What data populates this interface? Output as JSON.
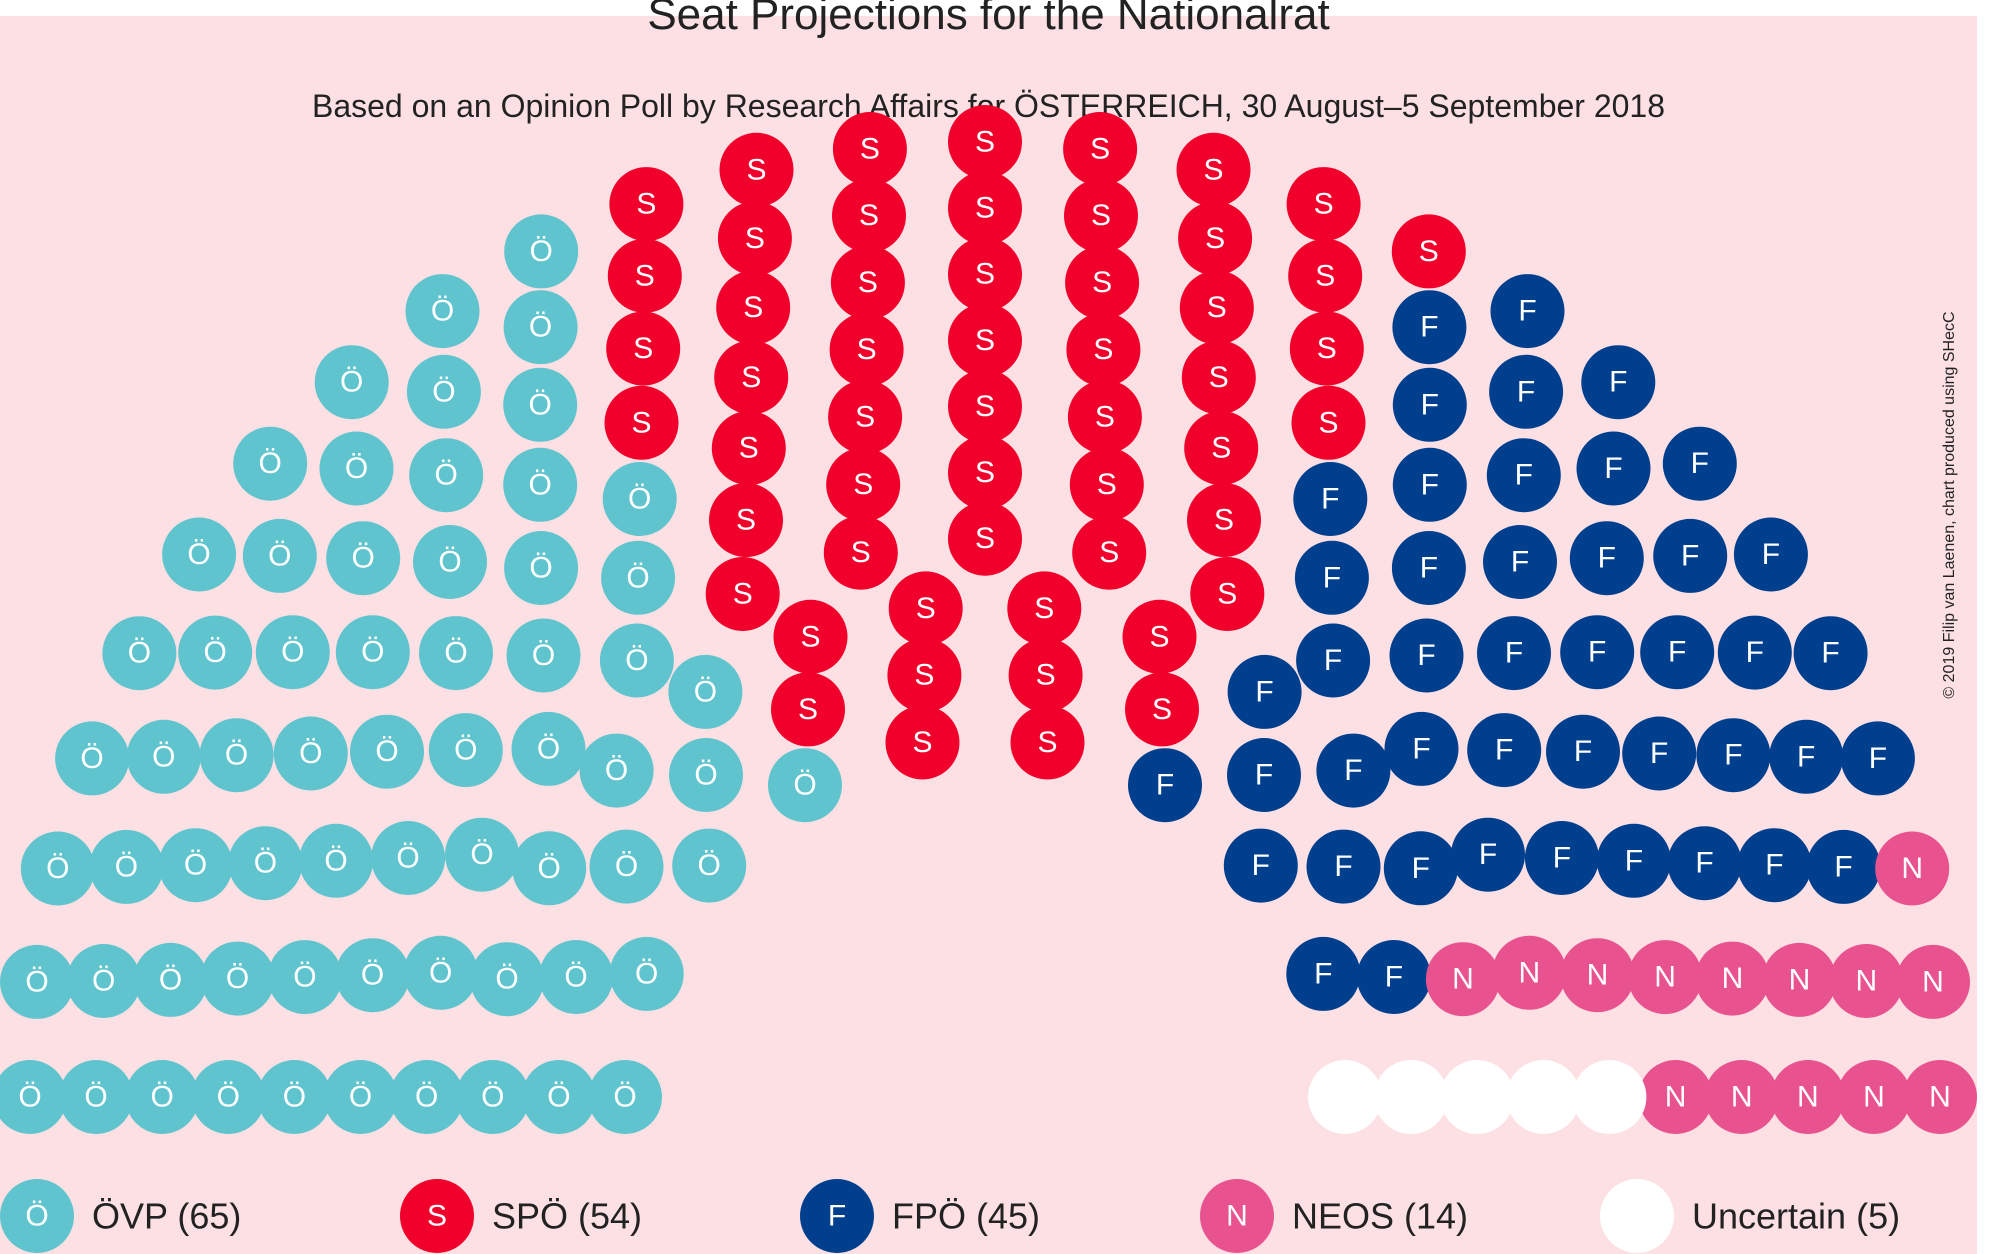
{
  "chart_data": {
    "type": "parliament",
    "title": "Seat Projections for the Nationalrat",
    "subtitle": "Based on an Opinion Poll by Research Affairs for ÖSTERREICH, 30 August–5 September 2018",
    "credit": "© 2019 Filip van Laenen, chart produced using SHecC",
    "total_seats": 183,
    "parties": [
      {
        "name": "ÖVP",
        "symbol": "Ö",
        "seats": 65,
        "color": "#60c4cf",
        "legend": "ÖVP (65)"
      },
      {
        "name": "SPÖ",
        "symbol": "S",
        "seats": 54,
        "color": "#f0002a",
        "legend": "SPÖ (54)"
      },
      {
        "name": "FPÖ",
        "symbol": "F",
        "seats": 45,
        "color": "#003f8e",
        "legend": "FPÖ (45)"
      },
      {
        "name": "NEOS",
        "symbol": "N",
        "seats": 14,
        "color": "#e8528f",
        "legend": "NEOS (14)"
      },
      {
        "name": "Uncertain",
        "symbol": "",
        "seats": 5,
        "color": "#ffffff",
        "legend": "Uncertain (5)"
      }
    ],
    "legend_position": "bottom"
  },
  "colors": {
    "background": "#fde0e3"
  }
}
